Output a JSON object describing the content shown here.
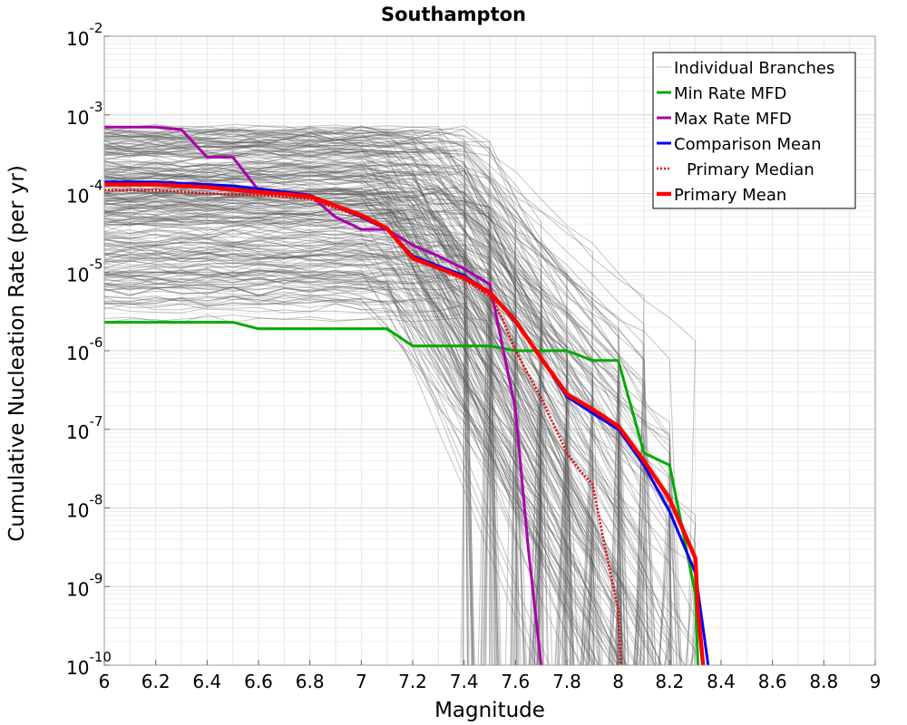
{
  "chart_data": {
    "type": "line",
    "title": "Southampton",
    "xlabel": "Magnitude",
    "ylabel": "Cumulative Nucleation Rate (per yr)",
    "xlim": [
      6,
      9
    ],
    "ylim": [
      1e-10,
      0.01
    ],
    "yscale": "log",
    "grid": true,
    "legend_position": "top-right",
    "x_ticks": [
      "6",
      "6.2",
      "6.4",
      "6.6",
      "6.8",
      "7",
      "7.2",
      "7.4",
      "7.6",
      "7.8",
      "8",
      "8.2",
      "8.4",
      "8.6",
      "8.8",
      "9"
    ],
    "y_ticks": [
      {
        "base": "10",
        "exp": "-2"
      },
      {
        "base": "10",
        "exp": "-3"
      },
      {
        "base": "10",
        "exp": "-4"
      },
      {
        "base": "10",
        "exp": "-5"
      },
      {
        "base": "10",
        "exp": "-6"
      },
      {
        "base": "10",
        "exp": "-7"
      },
      {
        "base": "10",
        "exp": "-8"
      },
      {
        "base": "10",
        "exp": "-9"
      },
      {
        "base": "10",
        "exp": "-10"
      }
    ],
    "series": [
      {
        "name": "Individual Branches",
        "color": "#555555",
        "style": "thin-band",
        "count": "many",
        "upper_envelope": {
          "x": [
            6.0,
            6.8,
            7.2,
            7.6,
            8.0,
            8.3
          ],
          "y": [
            0.00075,
            0.0003,
            6e-05,
            4e-06,
            1e-06,
            3e-07
          ]
        },
        "lower_envelope": {
          "x": [
            6.0,
            6.8,
            7.0,
            7.2,
            7.4
          ],
          "y": [
            4e-06,
            4e-06,
            2e-06,
            1e-07,
            1e-10
          ]
        }
      },
      {
        "name": "Min Rate MFD",
        "color": "#00aa00",
        "style": "solid",
        "x": [
          6.0,
          6.5,
          6.6,
          7.1,
          7.2,
          7.5,
          7.6,
          7.8,
          7.9,
          8.0,
          8.1,
          8.2,
          8.3,
          8.31
        ],
        "y": [
          2.3e-06,
          2.3e-06,
          1.9e-06,
          1.9e-06,
          1.15e-06,
          1.15e-06,
          1e-06,
          1e-06,
          7.5e-07,
          7.5e-07,
          5e-08,
          3.5e-08,
          8e-10,
          1e-10
        ]
      },
      {
        "name": "Max Rate MFD",
        "color": "#aa00aa",
        "style": "solid",
        "x": [
          6.0,
          6.2,
          6.3,
          6.4,
          6.5,
          6.6,
          6.8,
          6.9,
          7.0,
          7.1,
          7.2,
          7.3,
          7.4,
          7.5,
          7.6,
          7.65,
          7.7
        ],
        "y": [
          0.0007,
          0.0007,
          0.00065,
          0.00029,
          0.00029,
          0.00011,
          9.5e-05,
          5e-05,
          3.5e-05,
          3.5e-05,
          2.2e-05,
          1.6e-05,
          1.1e-05,
          7e-06,
          1.8e-07,
          3e-09,
          1e-10
        ]
      },
      {
        "name": "Comparison Mean",
        "color": "#0000ee",
        "style": "solid",
        "x": [
          6.0,
          6.2,
          6.4,
          6.5,
          6.6,
          6.8,
          7.0,
          7.1,
          7.2,
          7.4,
          7.5,
          7.6,
          7.7,
          7.8,
          7.9,
          8.0,
          8.1,
          8.2,
          8.3,
          8.35
        ],
        "y": [
          0.00014,
          0.00014,
          0.00013,
          0.000125,
          0.000115,
          9.5e-05,
          5e-05,
          3.5e-05,
          1.6e-05,
          9e-06,
          5.5e-06,
          2.3e-06,
          8e-07,
          2.6e-07,
          1.6e-07,
          1e-07,
          3.5e-08,
          9e-09,
          1.5e-09,
          1e-10
        ]
      },
      {
        "name": "Primary Median",
        "color": "#ee0000",
        "style": "dotted",
        "x": [
          6.0,
          6.2,
          6.4,
          6.6,
          6.8,
          7.0,
          7.1,
          7.2,
          7.3,
          7.4,
          7.5,
          7.55,
          7.6,
          7.7,
          7.8,
          7.85,
          7.9,
          7.95,
          8.0,
          8.01
        ],
        "y": [
          0.00011,
          0.00011,
          0.0001,
          9.5e-05,
          8.5e-05,
          5e-05,
          3.5e-05,
          1.6e-05,
          1.1e-05,
          8e-06,
          5e-06,
          2.5e-06,
          1e-06,
          2.5e-07,
          5e-08,
          3e-08,
          2e-08,
          3e-09,
          5e-10,
          1e-10
        ]
      },
      {
        "name": "Primary Mean",
        "color": "#ff0000",
        "style": "thick",
        "x": [
          6.0,
          6.2,
          6.4,
          6.6,
          6.8,
          7.0,
          7.1,
          7.2,
          7.4,
          7.5,
          7.6,
          7.7,
          7.8,
          7.9,
          8.0,
          8.1,
          8.2,
          8.3,
          8.31,
          8.33
        ],
        "y": [
          0.00013,
          0.00013,
          0.00012,
          0.000105,
          9.2e-05,
          5.3e-05,
          3.6e-05,
          1.5e-05,
          8.5e-06,
          5.5e-06,
          2.4e-06,
          8e-07,
          2.8e-07,
          1.8e-07,
          1.1e-07,
          4e-08,
          1.3e-08,
          2.3e-09,
          5e-10,
          1e-10
        ]
      }
    ]
  }
}
